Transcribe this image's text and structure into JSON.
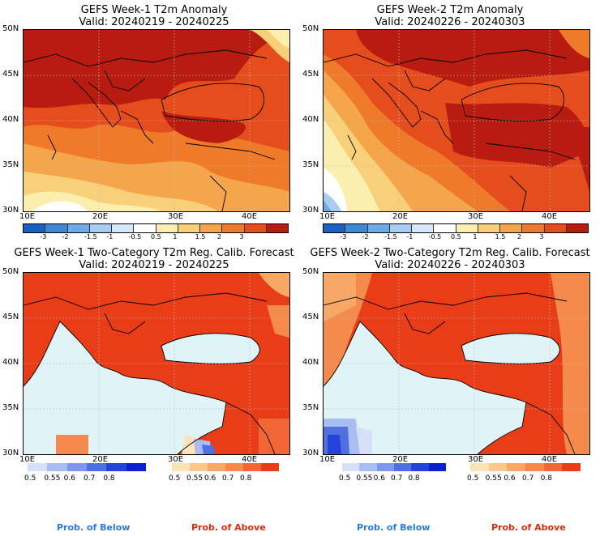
{
  "panels": {
    "p1": {
      "title1": "GEFS Week-1 T2m Anomaly",
      "title2": "Valid: 20240219 - 20240225"
    },
    "p2": {
      "title1": "GEFS Week-2 T2m Anomaly",
      "title2": "Valid: 20240226 - 20240303"
    },
    "p3": {
      "title1": "GEFS Week-1 Two-Category T2m Reg. Calib. Forecast",
      "title2": "Valid: 20240219 - 20240225"
    },
    "p4": {
      "title1": "GEFS Week-2 Two-Category T2m Reg. Calib. Forecast",
      "title2": "Valid: 20240226 - 20240303"
    }
  },
  "axes": {
    "lat": [
      "50N",
      "45N",
      "40N",
      "35N",
      "30N"
    ],
    "lon": [
      "10E",
      "20E",
      "30E",
      "40E"
    ]
  },
  "anomaly_colorbar": {
    "labels": [
      "-3",
      "-2",
      "-1.5",
      "-1",
      "-0.5",
      "0.5",
      "1",
      "1.5",
      "2",
      "3"
    ],
    "colors": [
      "#1b5fc4",
      "#3f86d6",
      "#6fa9e6",
      "#a8cdf2",
      "#d4e8f9",
      "#ffffff",
      "#fbefb0",
      "#f8d07a",
      "#f5a54a",
      "#ef7a2a",
      "#e54d1c",
      "#b81b10"
    ]
  },
  "prob_below": {
    "labels": [
      "0.5",
      "0.55",
      "0.6",
      "0.7",
      "0.8"
    ],
    "colors": [
      "#d6e0f8",
      "#a9bdf2",
      "#7e97ea",
      "#5070e0",
      "#2443d8",
      "#0b1fd0"
    ],
    "caption": "Prob. of Below"
  },
  "prob_above": {
    "labels": [
      "0.5",
      "0.55",
      "0.6",
      "0.7",
      "0.8"
    ],
    "colors": [
      "#fbe4b8",
      "#f9c98a",
      "#f7a866",
      "#f48a4c",
      "#f06634",
      "#e83d16"
    ],
    "caption": "Prob. of Above"
  }
}
